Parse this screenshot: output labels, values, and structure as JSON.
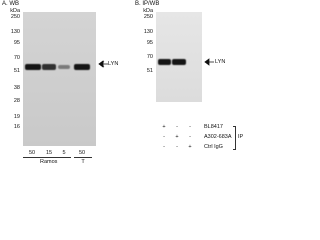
{
  "panel_a": {
    "title": "A. WB",
    "unit": "kDa",
    "markers": [
      "250",
      "130",
      "95",
      "70",
      "51",
      "38",
      "28",
      "19",
      "16"
    ],
    "target": "LYN",
    "lanes": [
      "50",
      "15",
      "5",
      "50"
    ],
    "samples": [
      "Ramos",
      "T"
    ]
  },
  "panel_b": {
    "title": "B. IP/WB",
    "unit": "kDa",
    "markers": [
      "250",
      "130",
      "95",
      "70",
      "51"
    ],
    "target": "LYN",
    "rows": [
      {
        "label": "BL8417",
        "marks": [
          "+",
          "-",
          "-"
        ]
      },
      {
        "label": "A302-683A",
        "marks": [
          "-",
          "+",
          "-"
        ]
      },
      {
        "label": "Ctrl IgG",
        "marks": [
          "-",
          "-",
          "+"
        ]
      }
    ],
    "group": "IP"
  }
}
